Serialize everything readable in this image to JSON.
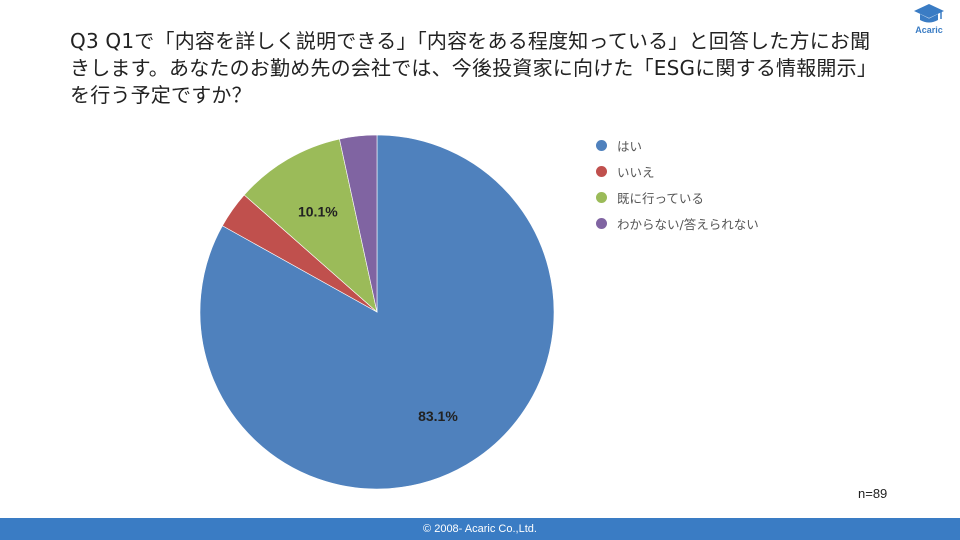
{
  "title": "Q3 Q1で「内容を詳しく説明できる」「内容をある程度知っている」と回答した方にお聞きします。あなたのお勤め先の会社では、今後投資家に向けた「ESGに関する情報開示」を行う予定ですか？",
  "brand": {
    "logo_text": "Acaric",
    "logo_icon": "graduation-cap-icon",
    "color": "#3a7cc4"
  },
  "sample_size": "n=89",
  "footer": {
    "copyright": "© 2008- Acaric Co.,Ltd."
  },
  "chart_data": {
    "type": "pie",
    "categories": [
      "はい",
      "いいえ",
      "既に行っている",
      "わからない/答えられない"
    ],
    "values": [
      83.1,
      3.4,
      10.1,
      3.4
    ],
    "colors": [
      "#4f81bd",
      "#c0504d",
      "#9bbb59",
      "#8064a2"
    ],
    "data_labels": [
      "83.1%",
      "",
      "10.1%",
      ""
    ],
    "start_angle": "12 o'clock",
    "direction": "clockwise",
    "legend_position": "right"
  }
}
